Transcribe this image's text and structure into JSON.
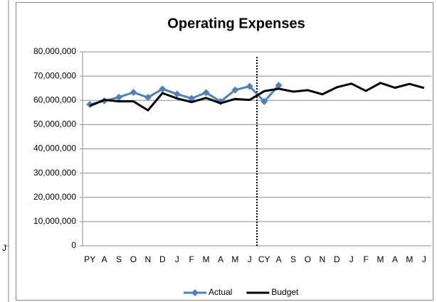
{
  "partial_chart_label": "J",
  "chart_data": {
    "type": "line",
    "title": "Operating Expenses",
    "categories": [
      "PY",
      "A",
      "S",
      "O",
      "N",
      "D",
      "J",
      "F",
      "M",
      "A",
      "M",
      "J",
      "CY",
      "A",
      "S",
      "O",
      "N",
      "D",
      "J",
      "F",
      "M",
      "A",
      "M",
      "J"
    ],
    "series": [
      {
        "name": "Actual",
        "color": "#4f81bd",
        "marker": "diamond",
        "values": [
          58300000,
          59800000,
          61300000,
          63300000,
          61200000,
          64700000,
          62600000,
          60800000,
          63200000,
          59500000,
          64300000,
          65800000,
          59500000,
          66200000,
          null,
          null,
          null,
          null,
          null,
          null,
          null,
          null,
          null,
          null
        ]
      },
      {
        "name": "Budget",
        "color": "#000000",
        "values": [
          57700000,
          60200000,
          59600000,
          59600000,
          55900000,
          63000000,
          60800000,
          59300000,
          61000000,
          58800000,
          60600000,
          60200000,
          63800000,
          64800000,
          63600000,
          64200000,
          62500000,
          65400000,
          66900000,
          63900000,
          67200000,
          65200000,
          66800000,
          65100000
        ]
      }
    ],
    "ylim": [
      0,
      80000000
    ],
    "yticks": [
      0,
      {
        "value": 10000000,
        "label": "10,000,000"
      },
      {
        "value": 20000000,
        "label": "20,000,000"
      },
      {
        "value": 30000000,
        "label": "30,000,000"
      },
      {
        "value": 40000000,
        "label": "40,000,000"
      },
      {
        "value": 50000000,
        "label": "50,000,000"
      },
      {
        "value": 60000000,
        "label": "60,000,000"
      },
      {
        "value": 70000000,
        "label": "70,000,000"
      },
      {
        "value": 80000000,
        "label": "80,000,000"
      }
    ],
    "grid": true,
    "legend": "bottom"
  }
}
